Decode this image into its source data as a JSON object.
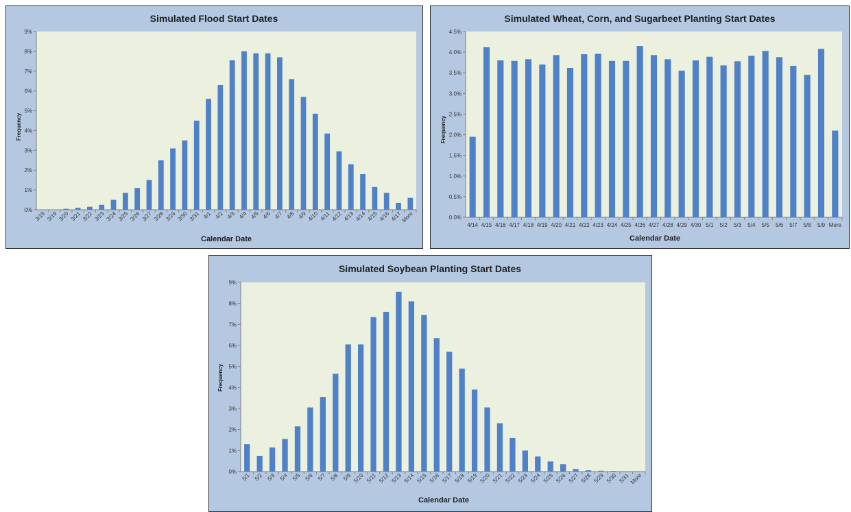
{
  "chart_data": [
    {
      "type": "bar",
      "title": "Simulated Flood Start Dates",
      "xlabel": "Calendar Date",
      "ylabel": "Frequency",
      "ylim": [
        0,
        9
      ],
      "yticks": [
        "0%",
        "1%",
        "2%",
        "3%",
        "4%",
        "5%",
        "6%",
        "7%",
        "8%",
        "9%"
      ],
      "categories": [
        "3/19",
        "3/19",
        "3/20",
        "3/21",
        "3/22",
        "3/23",
        "3/24",
        "3/25",
        "3/26",
        "3/27",
        "3/28",
        "3/29",
        "3/30",
        "3/31",
        "4/1",
        "4/2",
        "4/3",
        "4/4",
        "4/5",
        "4/6",
        "4/7",
        "4/8",
        "4/9",
        "4/10",
        "4/11",
        "4/12",
        "4/13",
        "4/14",
        "4/15",
        "4/16",
        "4/17",
        "More"
      ],
      "values": [
        0.0,
        0.0,
        0.05,
        0.1,
        0.15,
        0.25,
        0.5,
        0.85,
        1.1,
        1.5,
        2.5,
        3.1,
        3.5,
        4.5,
        5.6,
        6.3,
        7.55,
        8.0,
        7.9,
        7.9,
        7.7,
        6.6,
        5.7,
        4.85,
        3.85,
        2.95,
        2.3,
        1.8,
        1.15,
        0.85,
        0.35,
        0.6
      ],
      "rotate_labels": true,
      "grid": false
    },
    {
      "type": "bar",
      "title": "Simulated Wheat, Corn, and Sugarbeet Planting Start Dates",
      "xlabel": "Calendar Date",
      "ylabel": "Frequency",
      "ylim": [
        0,
        4.5
      ],
      "yticks": [
        "0.0%",
        "0.5%",
        "1.0%",
        "1.5%",
        "2.0%",
        "2.5%",
        "3.0%",
        "3.5%",
        "4.0%",
        "4.5%"
      ],
      "categories": [
        "4/14",
        "4/15",
        "4/16",
        "4/17",
        "4/18",
        "4/19",
        "4/20",
        "4/21",
        "4/22",
        "4/23",
        "4/24",
        "4/25",
        "4/26",
        "4/27",
        "4/28",
        "4/29",
        "4/30",
        "5/1",
        "5/2",
        "5/3",
        "5/4",
        "5/5",
        "5/6",
        "5/7",
        "5/8",
        "5/9",
        "More"
      ],
      "values": [
        1.95,
        4.12,
        3.8,
        3.79,
        3.83,
        3.7,
        3.93,
        3.62,
        3.95,
        3.96,
        3.79,
        3.79,
        4.15,
        3.93,
        3.83,
        3.55,
        3.8,
        3.89,
        3.68,
        3.78,
        3.91,
        4.03,
        3.88,
        3.67,
        3.45,
        4.08,
        2.1
      ],
      "rotate_labels": false,
      "grid": false
    },
    {
      "type": "bar",
      "title": "Simulated Soybean Planting Start Dates",
      "xlabel": "Calendar Date",
      "ylabel": "Frequency",
      "ylim": [
        0,
        9
      ],
      "yticks": [
        "0%",
        "1%",
        "2%",
        "3%",
        "4%",
        "5%",
        "6%",
        "7%",
        "8%",
        "9%"
      ],
      "categories": [
        "5/1",
        "5/2",
        "5/3",
        "5/4",
        "5/5",
        "5/6",
        "5/7",
        "5/8",
        "5/9",
        "5/10",
        "5/11",
        "5/12",
        "5/13",
        "5/14",
        "5/15",
        "5/16",
        "5/17",
        "5/18",
        "5/19",
        "5/20",
        "5/21",
        "5/22",
        "5/23",
        "5/24",
        "5/25",
        "5/26",
        "5/27",
        "5/28",
        "5/29",
        "5/30",
        "5/31",
        "More"
      ],
      "values": [
        1.3,
        0.75,
        1.15,
        1.55,
        2.15,
        3.05,
        3.55,
        4.65,
        6.05,
        6.05,
        7.35,
        7.6,
        8.55,
        8.1,
        7.45,
        6.35,
        5.7,
        4.9,
        3.9,
        3.05,
        2.3,
        1.6,
        1.0,
        0.72,
        0.48,
        0.35,
        0.12,
        0.06,
        0.04,
        0.03,
        0.01,
        0.01
      ],
      "rotate_labels": true,
      "grid": false
    }
  ],
  "colors": {
    "bar": "#4f81c9",
    "plot_background": "#ebf1de",
    "panel_background": "#b4c8e2",
    "text": "#1f1f1f"
  }
}
